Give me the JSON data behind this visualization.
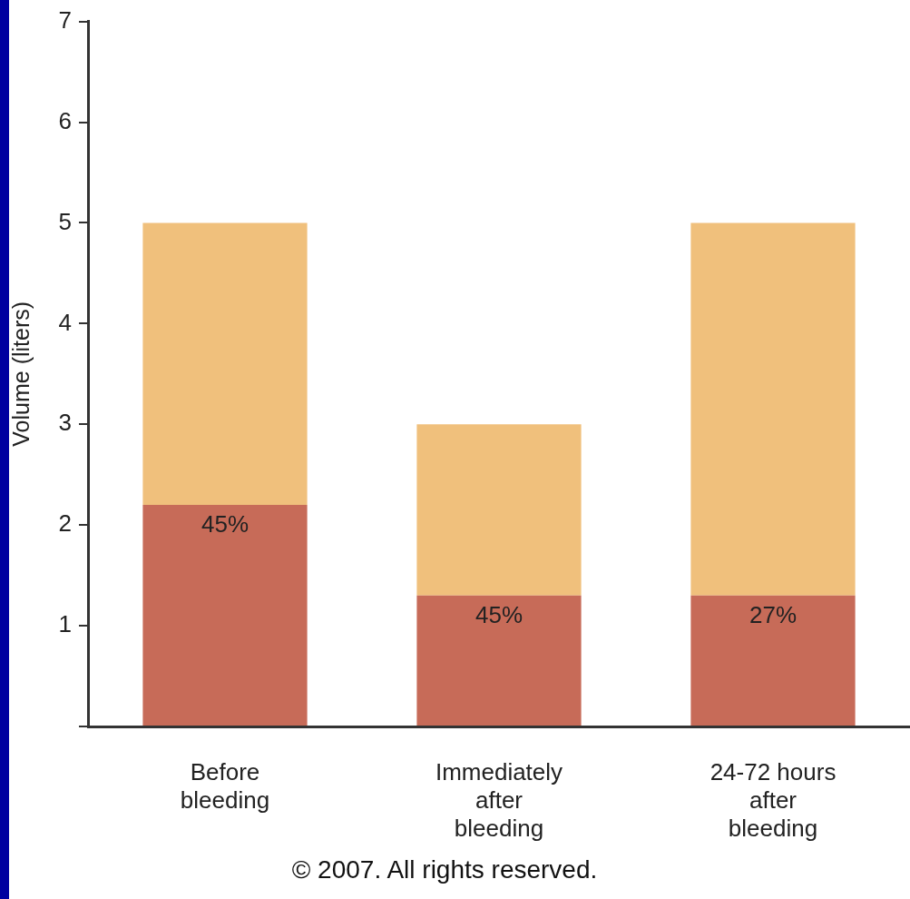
{
  "chart_data": {
    "type": "bar",
    "stacked": true,
    "ylabel": "Volume (liters)",
    "categories": [
      "Before bleeding",
      "Immediately after bleeding",
      "24-72 hours after bleeding"
    ],
    "series": [
      {
        "color": "#c76b58",
        "values": [
          2.2,
          1.3,
          1.3
        ]
      },
      {
        "color": "#f0c07c",
        "values": [
          2.8,
          1.7,
          3.7
        ]
      }
    ],
    "ylim": [
      0,
      7
    ],
    "yticks": [
      {
        "value": 0,
        "label": null
      },
      1,
      2,
      3,
      4,
      5,
      6,
      7
    ],
    "annotations": [
      {
        "text": "45%",
        "x": "Before bleeding",
        "y": 2.2
      },
      {
        "text": "45%",
        "x": "Immediately after bleeding",
        "y": 1.3
      },
      {
        "text": "27%",
        "x": "24-72 hours after bleeding",
        "y": 1.3
      },
      "© 2007. All rights reserved."
    ]
  }
}
